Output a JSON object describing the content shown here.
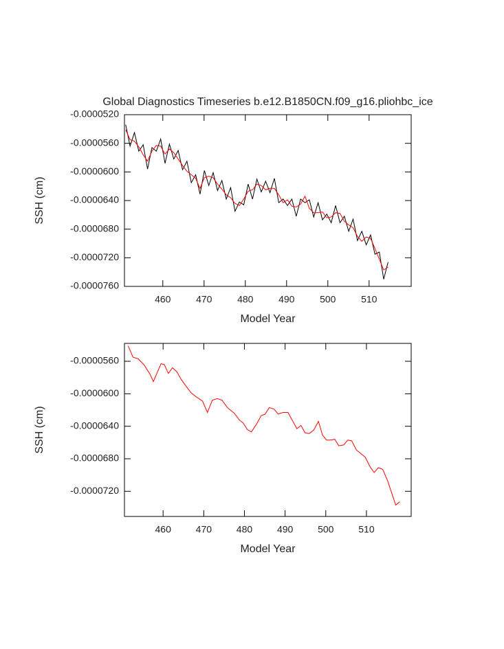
{
  "chart_data": [
    {
      "type": "line",
      "title": "Global Diagnostics Timeseries b.e12.B1850CN.f09_g16.pliohbc_ice",
      "x_label": "Model Year",
      "y_label": "SSH (cm)",
      "xlim": [
        450.7,
        520.2
      ],
      "xticks": [
        460,
        470,
        480,
        490,
        500,
        510
      ],
      "ylim": [
        -7.6e-05,
        -5.2e-05
      ],
      "yticks": [
        {
          "value": -5.2e-05,
          "label": "-0.0000520"
        },
        {
          "value": -5.6e-05,
          "label": "-0.0000560"
        },
        {
          "value": -6e-05,
          "label": "-0.0000600"
        },
        {
          "value": -6.4e-05,
          "label": "-0.0000640"
        },
        {
          "value": -6.8e-05,
          "label": "-0.0000680"
        },
        {
          "value": -7.2e-05,
          "label": "-0.0000720"
        },
        {
          "value": -7.6e-05,
          "label": "-0.0000760"
        }
      ],
      "x": [
        451,
        452.06,
        453.12,
        454.18,
        455.24,
        456.3,
        457.36,
        458.42,
        459.48,
        460.54,
        461.6,
        462.66,
        463.72,
        464.78,
        465.84,
        466.9,
        467.96,
        469.02,
        470.08,
        471.14,
        472.2,
        473.26,
        474.32,
        475.38,
        476.44,
        477.5,
        478.56,
        479.62,
        480.68,
        481.74,
        482.8,
        483.86,
        484.92,
        485.98,
        487.04,
        488.1,
        489.16,
        490.22,
        491.28,
        492.34,
        493.4,
        494.46,
        495.52,
        496.58,
        497.64,
        498.7,
        499.76,
        500.82,
        501.88,
        502.94,
        504,
        505.06,
        506.12,
        507.18,
        508.24,
        509.3,
        510.36,
        511.42,
        512.48,
        513.54,
        514.6
      ],
      "series": [
        {
          "color": "#000000",
          "values": [
            -5.34e-05,
            -5.64e-05,
            -5.45e-05,
            -5.71e-05,
            -5.62e-05,
            -5.96e-05,
            -5.66e-05,
            -5.71e-05,
            -5.54e-05,
            -5.88e-05,
            -5.61e-05,
            -5.82e-05,
            -5.7e-05,
            -5.97e-05,
            -5.85e-05,
            -6.15e-05,
            -6.04e-05,
            -6.31e-05,
            -5.98e-05,
            -6.19e-05,
            -6.01e-05,
            -6.26e-05,
            -6.12e-05,
            -6.38e-05,
            -6.22e-05,
            -6.55e-05,
            -6.42e-05,
            -6.46e-05,
            -6.17e-05,
            -6.38e-05,
            -6.1e-05,
            -6.28e-05,
            -6.13e-05,
            -6.29e-05,
            -6.09e-05,
            -6.43e-05,
            -6.38e-05,
            -6.47e-05,
            -6.38e-05,
            -6.62e-05,
            -6.38e-05,
            -6.43e-05,
            -6.39e-05,
            -6.63e-05,
            -6.43e-05,
            -6.67e-05,
            -6.59e-05,
            -6.71e-05,
            -6.47e-05,
            -6.71e-05,
            -6.62e-05,
            -6.83e-05,
            -6.66e-05,
            -6.96e-05,
            -6.83e-05,
            -7.02e-05,
            -6.88e-05,
            -7.15e-05,
            -7.12e-05,
            -7.5e-05,
            -7.26e-05
          ]
        },
        {
          "color": "#ff0000",
          "values": [
            -5.41e-05,
            -5.55e-05,
            -5.57e-05,
            -5.65e-05,
            -5.76e-05,
            -5.85e-05,
            -5.71e-05,
            -5.63e-05,
            -5.64e-05,
            -5.75e-05,
            -5.68e-05,
            -5.73e-05,
            -5.82e-05,
            -5.91e-05,
            -5.99e-05,
            -6.04e-05,
            -6.09e-05,
            -6.23e-05,
            -6.08e-05,
            -6.06e-05,
            -6.08e-05,
            -6.17e-05,
            -6.24e-05,
            -6.32e-05,
            -6.36e-05,
            -6.44e-05,
            -6.47e-05,
            -6.38e-05,
            -6.27e-05,
            -6.25e-05,
            -6.17e-05,
            -6.19e-05,
            -6.25e-05,
            -6.23e-05,
            -6.23e-05,
            -6.32e-05,
            -6.43e-05,
            -6.39e-05,
            -6.48e-05,
            -6.49e-05,
            -6.45e-05,
            -6.34e-05,
            -6.51e-05,
            -6.57e-05,
            -6.57e-05,
            -6.56e-05,
            -6.64e-05,
            -6.63e-05,
            -6.57e-05,
            -6.58e-05,
            -6.69e-05,
            -6.74e-05,
            -6.78e-05,
            -6.9e-05,
            -6.97e-05,
            -6.91e-05,
            -6.93e-05,
            -7.07e-05,
            -7.22e-05,
            -7.37e-05,
            -7.33e-05
          ]
        }
      ]
    },
    {
      "type": "line",
      "x_label": "Model Year",
      "y_label": "SSH (cm)",
      "xlim": [
        450.5,
        521
      ],
      "xticks": [
        460,
        470,
        480,
        490,
        500,
        510
      ],
      "ylim": [
        -7.51e-05,
        -5.38e-05
      ],
      "yticks": [
        {
          "value": -5.6e-05,
          "label": "-0.0000560"
        },
        {
          "value": -6e-05,
          "label": "-0.0000600"
        },
        {
          "value": -6.4e-05,
          "label": "-0.0000640"
        },
        {
          "value": -6.8e-05,
          "label": "-0.0000680"
        },
        {
          "value": -7.2e-05,
          "label": "-0.0000720"
        }
      ],
      "x": [
        451.4,
        452.6,
        453.9,
        455.4,
        456.8,
        457.6,
        458.8,
        459.5,
        460.3,
        461.3,
        462.3,
        463.4,
        464.4,
        465.7,
        466.9,
        468.2,
        469.7,
        470.9,
        472.1,
        473.3,
        474.5,
        475.8,
        477.5,
        478.7,
        479.7,
        480.7,
        481.7,
        482.9,
        484.1,
        485.1,
        486.1,
        487.3,
        488.3,
        489.5,
        490.7,
        491.7,
        492.9,
        493.9,
        494.9,
        495.9,
        497.0,
        498.2,
        499.2,
        500.2,
        501.2,
        502.2,
        503.2,
        504.4,
        505.4,
        506.4,
        507.5,
        508.7,
        509.7,
        510.9,
        511.9,
        512.9,
        514.0,
        515.2,
        516.2,
        517.2,
        518.2
      ],
      "series": [
        {
          "color": "#ff0000",
          "values": [
            -5.41e-05,
            -5.55e-05,
            -5.57e-05,
            -5.65e-05,
            -5.76e-05,
            -5.85e-05,
            -5.71e-05,
            -5.63e-05,
            -5.64e-05,
            -5.75e-05,
            -5.68e-05,
            -5.73e-05,
            -5.82e-05,
            -5.91e-05,
            -5.99e-05,
            -6.04e-05,
            -6.09e-05,
            -6.23e-05,
            -6.08e-05,
            -6.06e-05,
            -6.08e-05,
            -6.17e-05,
            -6.24e-05,
            -6.32e-05,
            -6.36e-05,
            -6.44e-05,
            -6.47e-05,
            -6.38e-05,
            -6.27e-05,
            -6.25e-05,
            -6.17e-05,
            -6.19e-05,
            -6.25e-05,
            -6.23e-05,
            -6.23e-05,
            -6.32e-05,
            -6.43e-05,
            -6.39e-05,
            -6.48e-05,
            -6.49e-05,
            -6.45e-05,
            -6.34e-05,
            -6.51e-05,
            -6.57e-05,
            -6.57e-05,
            -6.56e-05,
            -6.64e-05,
            -6.63e-05,
            -6.57e-05,
            -6.58e-05,
            -6.69e-05,
            -6.74e-05,
            -6.78e-05,
            -6.9e-05,
            -6.97e-05,
            -6.91e-05,
            -6.93e-05,
            -7.07e-05,
            -7.22e-05,
            -7.37e-05,
            -7.33e-05
          ]
        }
      ]
    }
  ]
}
